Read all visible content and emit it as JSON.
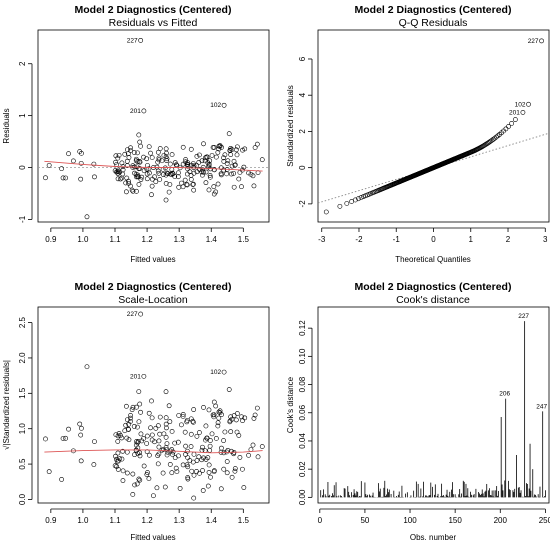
{
  "chart_data": [
    {
      "type": "scatter",
      "title": "Model 2 Diagnostics (Centered)",
      "subtitle": "Residuals vs Fitted",
      "xlabel": "Fitted values",
      "ylabel": "Residuals",
      "xlim": [
        0.86,
        1.58
      ],
      "ylim": [
        -1.05,
        2.65
      ],
      "xticks": [
        "0.9",
        "1.0",
        "1.1",
        "1.2",
        "1.3",
        "1.4",
        "1.5"
      ],
      "yticks": [
        "-1",
        "0",
        "1",
        "2"
      ],
      "smoother": {
        "color": "#dd5555",
        "x": [
          0.88,
          1.0,
          1.1,
          1.2,
          1.3,
          1.4,
          1.5,
          1.56
        ],
        "y": [
          0.12,
          0.06,
          0.02,
          0.0,
          0.0,
          -0.02,
          -0.05,
          -0.07
        ]
      },
      "labeled_points": [
        {
          "label": "227",
          "x": 1.18,
          "y": 2.45
        },
        {
          "label": "201",
          "x": 1.19,
          "y": 1.09
        },
        {
          "label": "102",
          "x": 1.44,
          "y": 1.2
        }
      ]
    },
    {
      "type": "scatter",
      "title": "Model 2 Diagnostics (Centered)",
      "subtitle": "Q-Q Residuals",
      "xlabel": "Theoretical Quantiles",
      "ylabel": "Standardized residuals",
      "xlim": [
        -3.1,
        3.1
      ],
      "ylim": [
        -3.0,
        7.6
      ],
      "xticks": [
        "-3",
        "-2",
        "-1",
        "0",
        "1",
        "2",
        "3"
      ],
      "yticks": [
        "-2",
        "0",
        "2",
        "4",
        "6"
      ],
      "reference_line": {
        "style": "dotted",
        "x": [
          -3.1,
          3.1
        ],
        "y": [
          -1.95,
          1.9
        ]
      },
      "labeled_points": [
        {
          "label": "227",
          "x": 2.9,
          "y": 7.0
        },
        {
          "label": "102",
          "x": 2.55,
          "y": 3.5
        },
        {
          "label": "201",
          "x": 2.4,
          "y": 3.05
        }
      ]
    },
    {
      "type": "scatter",
      "title": "Model 2 Diagnostics (Centered)",
      "subtitle": "Scale-Location",
      "xlabel": "Fitted values",
      "ylabel": "√|Standardized residuals|",
      "xlim": [
        0.86,
        1.58
      ],
      "ylim": [
        -0.05,
        2.72
      ],
      "xticks": [
        "0.9",
        "1.0",
        "1.1",
        "1.2",
        "1.3",
        "1.4",
        "1.5"
      ],
      "yticks": [
        "0.0",
        "0.5",
        "1.0",
        "1.5",
        "2.0",
        "2.5"
      ],
      "smoother": {
        "color": "#dd5555",
        "x": [
          0.88,
          1.0,
          1.1,
          1.2,
          1.3,
          1.4,
          1.5,
          1.56
        ],
        "y": [
          0.67,
          0.69,
          0.7,
          0.7,
          0.68,
          0.66,
          0.67,
          0.69
        ]
      },
      "labeled_points": [
        {
          "label": "227",
          "x": 1.18,
          "y": 2.62
        },
        {
          "label": "201",
          "x": 1.19,
          "y": 1.74
        },
        {
          "label": "102",
          "x": 1.44,
          "y": 1.8
        }
      ]
    },
    {
      "type": "bar",
      "title": "Model 2 Diagnostics (Centered)",
      "subtitle": "Cook's distance",
      "xlabel": "Obs. number",
      "ylabel": "Cook's distance",
      "xlim": [
        -2,
        254
      ],
      "ylim": [
        -0.004,
        0.135
      ],
      "xticks": [
        "0",
        "50",
        "100",
        "150",
        "200",
        "250"
      ],
      "yticks": [
        "0.00",
        "0.02",
        "0.04",
        "0.06",
        "0.08",
        "0.10",
        "0.12"
      ],
      "n_obs": 250,
      "highlighted": [
        {
          "obs": 201,
          "value": 0.057
        },
        {
          "obs": 206,
          "value": 0.07
        },
        {
          "obs": 218,
          "value": 0.03
        },
        {
          "obs": 227,
          "value": 0.125
        },
        {
          "obs": 233,
          "value": 0.038
        },
        {
          "obs": 236,
          "value": 0.02
        },
        {
          "obs": 247,
          "value": 0.061
        }
      ],
      "labeled_points": [
        {
          "label": "206",
          "obs": 206,
          "value": 0.07
        },
        {
          "label": "227",
          "obs": 227,
          "value": 0.125
        },
        {
          "label": "247",
          "obs": 247,
          "value": 0.061
        }
      ]
    }
  ]
}
